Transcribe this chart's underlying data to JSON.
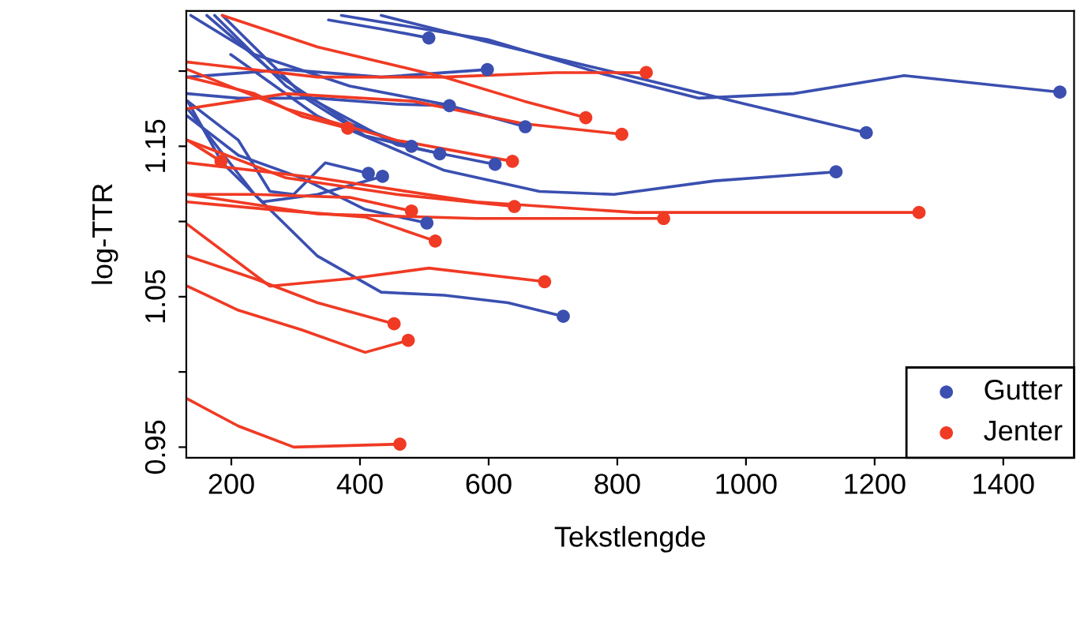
{
  "chart_data": {
    "type": "line",
    "xlabel": "Tekstlengde",
    "ylabel": "log-TTR",
    "xlim": [
      130,
      1510
    ],
    "ylim": [
      0.943,
      1.24
    ],
    "xticks": [
      200,
      400,
      600,
      800,
      1000,
      1200,
      1400
    ],
    "yticks": [
      0.95,
      {
        "value": 1.0,
        "label": null
      },
      1.05,
      {
        "value": 1.1,
        "label": null
      },
      1.15,
      {
        "value": 1.2,
        "label": null
      }
    ],
    "grid": false,
    "legend": "bottom right",
    "line_style": "solid",
    "marker": "none",
    "series": [
      {
        "color": "#3a4fb0",
        "x": [
          371,
          598,
          778,
          926,
          1074,
          1246,
          1488
        ],
        "values": [
          1.237,
          1.221,
          1.198,
          1.182,
          1.185,
          1.197,
          1.186
        ]
      },
      {
        "color": "#3a4fb0",
        "x": [
          433,
          630,
          827,
          1000,
          1187
        ],
        "values": [
          1.237,
          1.216,
          1.196,
          1.178,
          1.159
        ]
      },
      {
        "color": "#3a4fb0",
        "x": [
          351,
          433,
          507
        ],
        "values": [
          1.234,
          1.228,
          1.222
        ]
      },
      {
        "color": "#3a4fb0",
        "x": [
          132,
          285,
          433,
          598
        ],
        "values": [
          1.196,
          1.201,
          1.196,
          1.201
        ]
      },
      {
        "color": "#3a4fb0",
        "x": [
          132,
          211,
          334,
          457,
          539
        ],
        "values": [
          1.185,
          1.182,
          1.182,
          1.178,
          1.177
        ]
      },
      {
        "color": "#3a4fb0",
        "x": [
          137,
          236,
          384,
          531,
          657
        ],
        "values": [
          1.237,
          1.211,
          1.19,
          1.178,
          1.163
        ]
      },
      {
        "color": "#3a4fb0",
        "x": [
          162,
          260,
          384,
          480
        ],
        "values": [
          1.237,
          1.201,
          1.165,
          1.15
        ]
      },
      {
        "color": "#3a4fb0",
        "x": [
          174,
          285,
          408,
          524
        ],
        "values": [
          1.237,
          1.19,
          1.157,
          1.145
        ]
      },
      {
        "color": "#3a4fb0",
        "x": [
          186,
          309,
          457,
          610
        ],
        "values": [
          1.237,
          1.185,
          1.151,
          1.138
        ]
      },
      {
        "color": "#3a4fb0",
        "x": [
          132,
          211,
          260,
          297,
          346,
          413
        ],
        "values": [
          1.18,
          1.154,
          1.12,
          1.118,
          1.139,
          1.132
        ]
      },
      {
        "color": "#3a4fb0",
        "x": [
          132,
          186,
          248,
          334,
          435
        ],
        "values": [
          1.18,
          1.139,
          1.113,
          1.118,
          1.13
        ]
      },
      {
        "color": "#3a4fb0",
        "x": [
          199,
          334,
          531,
          679,
          795,
          951,
          1140
        ],
        "values": [
          1.211,
          1.17,
          1.134,
          1.12,
          1.118,
          1.127,
          1.133
        ]
      },
      {
        "color": "#3a4fb0",
        "x": [
          132,
          211,
          309,
          408,
          504
        ],
        "values": [
          1.17,
          1.144,
          1.129,
          1.108,
          1.099
        ]
      },
      {
        "color": "#3a4fb0",
        "x": [
          132,
          236,
          334,
          433,
          531,
          630,
          716
        ],
        "values": [
          1.175,
          1.118,
          1.077,
          1.053,
          1.051,
          1.046,
          1.037
        ]
      },
      {
        "color": "#f03a24",
        "x": [
          132,
          334,
          531,
          704,
          845
        ],
        "values": [
          1.206,
          1.196,
          1.196,
          1.199,
          1.199
        ]
      },
      {
        "color": "#f03a24",
        "x": [
          186,
          334,
          531,
          655,
          751
        ],
        "values": [
          1.237,
          1.216,
          1.196,
          1.18,
          1.169
        ]
      },
      {
        "color": "#f03a24",
        "x": [
          132,
          285,
          482,
          655,
          807
        ],
        "values": [
          1.175,
          1.185,
          1.18,
          1.165,
          1.158
        ]
      },
      {
        "color": "#f03a24",
        "x": [
          132,
          236,
          309,
          381
        ],
        "values": [
          1.196,
          1.185,
          1.17,
          1.162
        ]
      },
      {
        "color": "#f03a24",
        "x": [
          132,
          184
        ],
        "values": [
          1.154,
          1.14
        ]
      },
      {
        "color": "#f03a24",
        "x": [
          132,
          285,
          457,
          637
        ],
        "values": [
          1.201,
          1.175,
          1.154,
          1.14
        ]
      },
      {
        "color": "#f03a24",
        "x": [
          132,
          236,
          384,
          480
        ],
        "values": [
          1.118,
          1.118,
          1.116,
          1.107
        ]
      },
      {
        "color": "#f03a24",
        "x": [
          132,
          285,
          457,
          640
        ],
        "values": [
          1.154,
          1.129,
          1.118,
          1.11
        ]
      },
      {
        "color": "#f03a24",
        "x": [
          132,
          334,
          581,
          827,
          1269
        ],
        "values": [
          1.139,
          1.129,
          1.113,
          1.106,
          1.106
        ]
      },
      {
        "color": "#f03a24",
        "x": [
          132,
          260,
          408,
          517
        ],
        "values": [
          1.113,
          1.108,
          1.103,
          1.087
        ]
      },
      {
        "color": "#f03a24",
        "x": [
          132,
          260,
          384,
          507,
          687
        ],
        "values": [
          1.098,
          1.057,
          1.062,
          1.069,
          1.06
        ]
      },
      {
        "color": "#f03a24",
        "x": [
          132,
          236,
          334,
          453
        ],
        "values": [
          1.077,
          1.062,
          1.046,
          1.032
        ]
      },
      {
        "color": "#f03a24",
        "x": [
          132,
          211,
          309,
          408,
          475
        ],
        "values": [
          1.057,
          1.041,
          1.028,
          1.013,
          1.021
        ]
      },
      {
        "color": "#f03a24",
        "x": [
          132,
          211,
          297,
          462
        ],
        "values": [
          0.982,
          0.964,
          0.95,
          0.952
        ]
      },
      {
        "color": "#f03a24",
        "x": [
          132,
          334,
          581,
          872
        ],
        "values": [
          1.118,
          1.105,
          1.102,
          1.102
        ]
      },
      {
        "type": "scatter",
        "marker": "circle",
        "name": "Gutter",
        "color": "#3a4fb0",
        "x": [
          1488,
          1187,
          507,
          598,
          539,
          657,
          480,
          524,
          610,
          413,
          435,
          1140,
          504,
          716
        ],
        "values": [
          1.186,
          1.159,
          1.222,
          1.201,
          1.177,
          1.163,
          1.15,
          1.145,
          1.138,
          1.132,
          1.13,
          1.133,
          1.099,
          1.037
        ]
      },
      {
        "type": "scatter",
        "marker": "circle",
        "name": "Jenter",
        "color": "#f03a24",
        "x": [
          845,
          751,
          807,
          381,
          184,
          637,
          480,
          640,
          1269,
          517,
          687,
          453,
          475,
          462,
          872
        ],
        "values": [
          1.199,
          1.169,
          1.158,
          1.162,
          1.14,
          1.14,
          1.107,
          1.11,
          1.106,
          1.087,
          1.06,
          1.032,
          1.021,
          0.952,
          1.102
        ]
      }
    ]
  }
}
